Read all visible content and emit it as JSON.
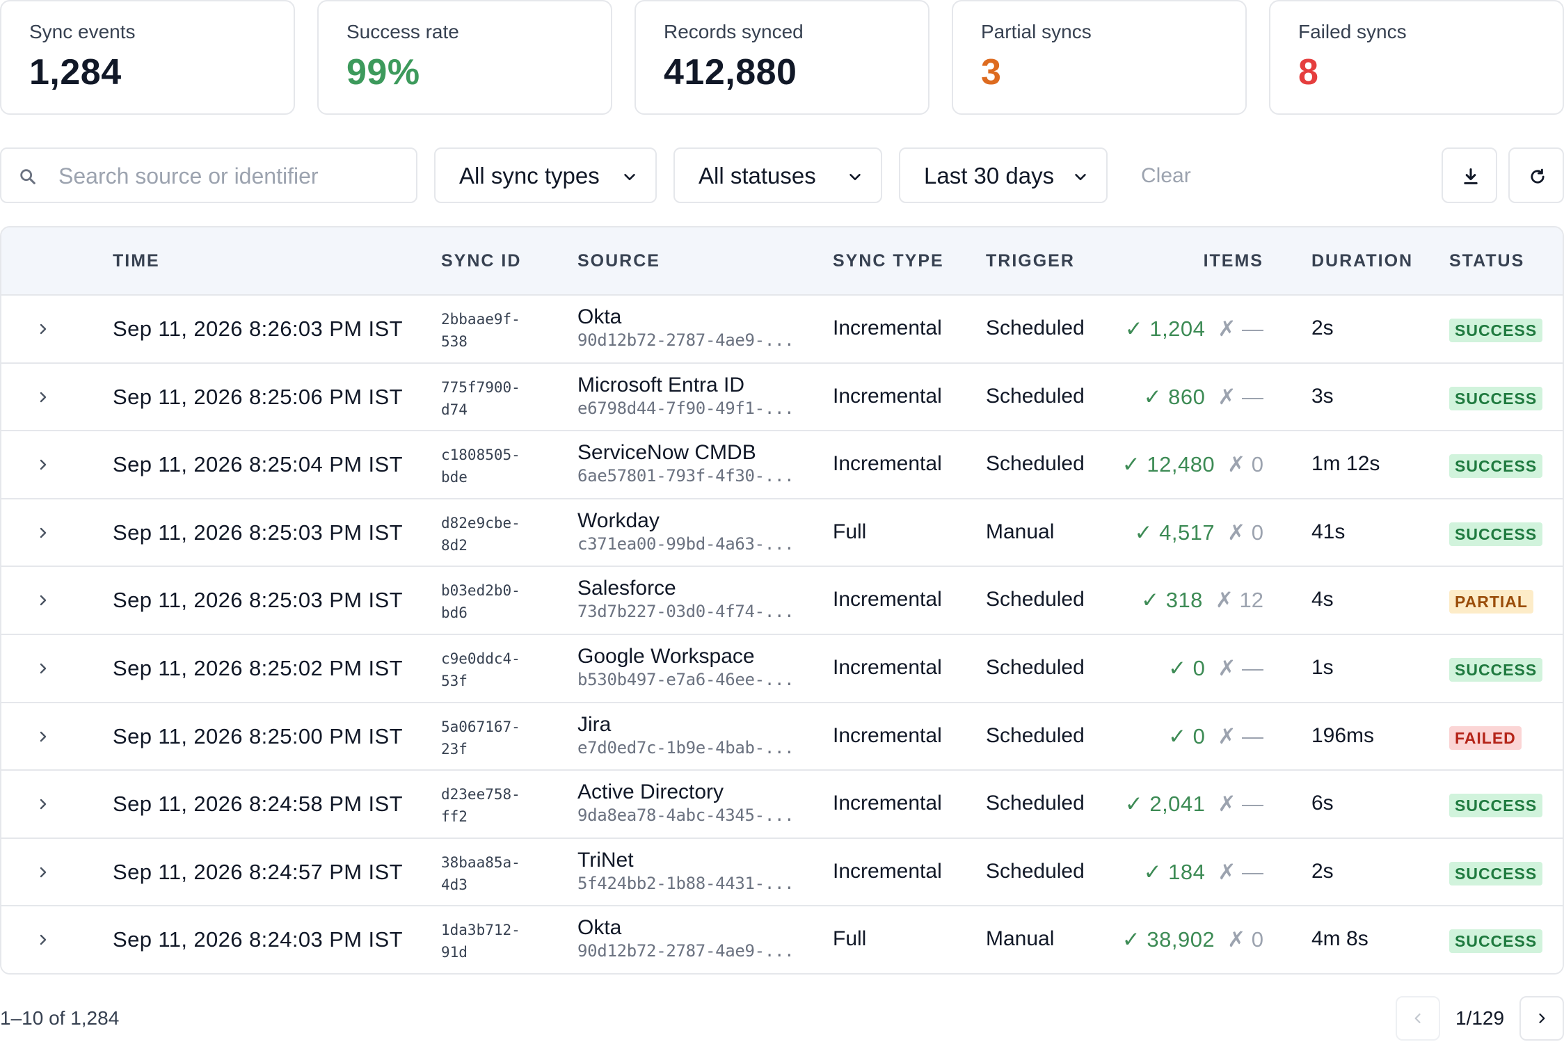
{
  "stats": [
    {
      "label": "Sync events",
      "value": "1,284",
      "color": "#111827"
    },
    {
      "label": "Success rate",
      "value": "99%",
      "color": "#3d9a5c"
    },
    {
      "label": "Records synced",
      "value": "412,880",
      "color": "#111827"
    },
    {
      "label": "Partial syncs",
      "value": "3",
      "color": "#dd6b20"
    },
    {
      "label": "Failed syncs",
      "value": "8",
      "color": "#e53e3e"
    }
  ],
  "toolbar": {
    "search_placeholder": "Search source or identifier",
    "sync_type_filter": "All sync types",
    "status_filter": "All statuses",
    "date_filter": "Last 30 days",
    "clear_label": "Clear",
    "download_icon": "download-icon",
    "refresh_icon": "refresh-icon"
  },
  "table": {
    "headers": {
      "time": "TIME",
      "sync_id": "SYNC ID",
      "source": "SOURCE",
      "sync_type": "SYNC TYPE",
      "trigger": "TRIGGER",
      "items": "ITEMS",
      "duration": "DURATION",
      "status": "STATUS"
    },
    "rows": [
      {
        "time": "Sep 11, 2026 8:26:03 PM IST",
        "id1": "2bbaae9f-",
        "id2": "538",
        "source": "Okta",
        "source_id": "90d12b72-2787-4ae9-...",
        "type": "Incremental",
        "trigger": "Scheduled",
        "ok": "✓ 1,204",
        "fail": "✗ —",
        "duration": "2s",
        "status": "SUCCESS"
      },
      {
        "time": "Sep 11, 2026 8:25:06 PM IST",
        "id1": "775f7900-",
        "id2": "d74",
        "source": "Microsoft Entra ID",
        "source_id": "e6798d44-7f90-49f1-...",
        "type": "Incremental",
        "trigger": "Scheduled",
        "ok": "✓ 860",
        "fail": "✗ —",
        "duration": "3s",
        "status": "SUCCESS"
      },
      {
        "time": "Sep 11, 2026 8:25:04 PM IST",
        "id1": "c1808505-",
        "id2": "bde",
        "source": "ServiceNow CMDB",
        "source_id": "6ae57801-793f-4f30-...",
        "type": "Incremental",
        "trigger": "Scheduled",
        "ok": "✓ 12,480",
        "fail": "✗ 0",
        "duration": "1m 12s",
        "status": "SUCCESS"
      },
      {
        "time": "Sep 11, 2026 8:25:03 PM IST",
        "id1": "d82e9cbe-",
        "id2": "8d2",
        "source": "Workday",
        "source_id": "c371ea00-99bd-4a63-...",
        "type": "Full",
        "trigger": "Manual",
        "ok": "✓ 4,517",
        "fail": "✗ 0",
        "duration": "41s",
        "status": "SUCCESS"
      },
      {
        "time": "Sep 11, 2026 8:25:03 PM IST",
        "id1": "b03ed2b0-",
        "id2": "bd6",
        "source": "Salesforce",
        "source_id": "73d7b227-03d0-4f74-...",
        "type": "Incremental",
        "trigger": "Scheduled",
        "ok": "✓ 318",
        "fail": "✗ 12",
        "duration": "4s",
        "status": "PARTIAL"
      },
      {
        "time": "Sep 11, 2026 8:25:02 PM IST",
        "id1": "c9e0ddc4-",
        "id2": "53f",
        "source": "Google Workspace",
        "source_id": "b530b497-e7a6-46ee-...",
        "type": "Incremental",
        "trigger": "Scheduled",
        "ok": "✓ 0",
        "fail": "✗ —",
        "duration": "1s",
        "status": "SUCCESS"
      },
      {
        "time": "Sep 11, 2026 8:25:00 PM IST",
        "id1": "5a067167-",
        "id2": "23f",
        "source": "Jira",
        "source_id": "e7d0ed7c-1b9e-4bab-...",
        "type": "Incremental",
        "trigger": "Scheduled",
        "ok": "✓ 0",
        "fail": "✗ —",
        "duration": "196ms",
        "status": "FAILED"
      },
      {
        "time": "Sep 11, 2026 8:24:58 PM IST",
        "id1": "d23ee758-",
        "id2": "ff2",
        "source": "Active Directory",
        "source_id": "9da8ea78-4abc-4345-...",
        "type": "Incremental",
        "trigger": "Scheduled",
        "ok": "✓ 2,041",
        "fail": "✗ —",
        "duration": "6s",
        "status": "SUCCESS"
      },
      {
        "time": "Sep 11, 2026 8:24:57 PM IST",
        "id1": "38baa85a-",
        "id2": "4d3",
        "source": "TriNet",
        "source_id": "5f424bb2-1b88-4431-...",
        "type": "Incremental",
        "trigger": "Scheduled",
        "ok": "✓ 184",
        "fail": "✗ —",
        "duration": "2s",
        "status": "SUCCESS"
      },
      {
        "time": "Sep 11, 2026 8:24:03 PM IST",
        "id1": "1da3b712-",
        "id2": "91d",
        "source": "Okta",
        "source_id": "90d12b72-2787-4ae9-...",
        "type": "Full",
        "trigger": "Manual",
        "ok": "✓ 38,902",
        "fail": "✗ 0",
        "duration": "4m 8s",
        "status": "SUCCESS"
      }
    ]
  },
  "status_colors": {
    "SUCCESS": {
      "bg": "#d1f3dc",
      "fg": "#1f7a3f"
    },
    "PARTIAL": {
      "bg": "#fdecc8",
      "fg": "#9a4d0a"
    },
    "FAILED": {
      "bg": "#fbd5d5",
      "fg": "#b42318"
    }
  },
  "pagination": {
    "range": "1–10 of 1,284",
    "page": "1/129"
  }
}
